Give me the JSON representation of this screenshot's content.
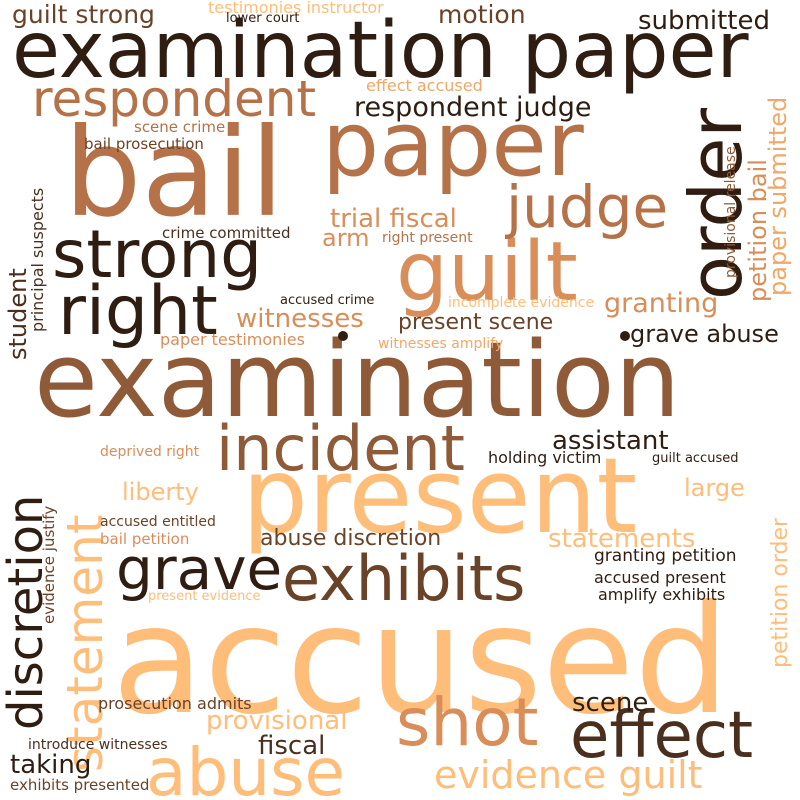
{
  "cloud": {
    "w_examination_paper": "examination paper",
    "w_bail": "bail",
    "w_paper": "paper",
    "w_examination": "examination",
    "w_accused": "accused",
    "w_present": "present",
    "w_order": "order",
    "w_guilt": "guilt",
    "w_strong": "strong",
    "w_right": "right",
    "w_respondent": "respondent",
    "w_judge": "judge",
    "w_incident": "incident",
    "w_exhibits": "exhibits",
    "w_grave": "grave",
    "w_discretion": "discretion",
    "w_statement": "statement",
    "w_shot": "shot",
    "w_effect": "effect",
    "w_abuse": "abuse",
    "w_evidence_guilt": "evidence guilt",
    "w_guilt_strong": "guilt strong",
    "w_testimonies_instructor": "testimonies instructor",
    "w_lower_court": "lower court",
    "w_motion": "motion",
    "w_submitted": "submitted",
    "w_effect_accused": "effect accused",
    "w_respondent_judge": "respondent judge",
    "w_scene_crime": "scene crime",
    "w_bail_prosecution": "bail prosecution",
    "w_provisional_release": "provisional release",
    "w_petition_bail": "petition bail",
    "w_paper_submitted": "paper submitted",
    "w_trial_fiscal": "trial fiscal",
    "w_crime_committed": "crime committed",
    "w_arm": "arm",
    "w_right_present": "right present",
    "w_principal_suspects": "principal suspects",
    "w_student": "student",
    "w_granting": "granting",
    "w_accused_crime": "accused crime",
    "w_incomplete_evidence": "incomplete evidence",
    "w_witnesses": "witnesses",
    "w_present_scene": "present scene",
    "w_grave_abuse": "grave abuse",
    "w_paper_testimonies": "paper testimonies",
    "w_witnesses_amplify": "witnesses amplify",
    "w_assistant": "assistant",
    "w_deprived_right": "deprived right",
    "w_holding_victim": "holding victim",
    "w_guilt_accused": "guilt accused",
    "w_evidence_justify": "evidence justify",
    "w_liberty": "liberty",
    "w_large": "large",
    "w_petition_order": "petition order",
    "w_accused_entitled": "accused entitled",
    "w_bail_petition": "bail petition",
    "w_abuse_discretion": "abuse discretion",
    "w_statements": "statements",
    "w_granting_petition": "granting petition",
    "w_accused_present": "accused present",
    "w_present_evidence": "present evidence",
    "w_amplify_exhibits": "amplify exhibits",
    "w_prosecution_admits": "prosecution admits",
    "w_scene": "scene",
    "w_provisional": "provisional",
    "w_fiscal": "fiscal",
    "w_introduce_witnesses": "introduce witnesses",
    "w_taking": "taking",
    "w_exhibits_presented": "exhibits presented"
  },
  "palette": [
    "#2f1d12",
    "#4b2f1e",
    "#6a4228",
    "#8f5a37",
    "#b57248",
    "#d98d59",
    "#f0a769",
    "#ffbd7a"
  ]
}
